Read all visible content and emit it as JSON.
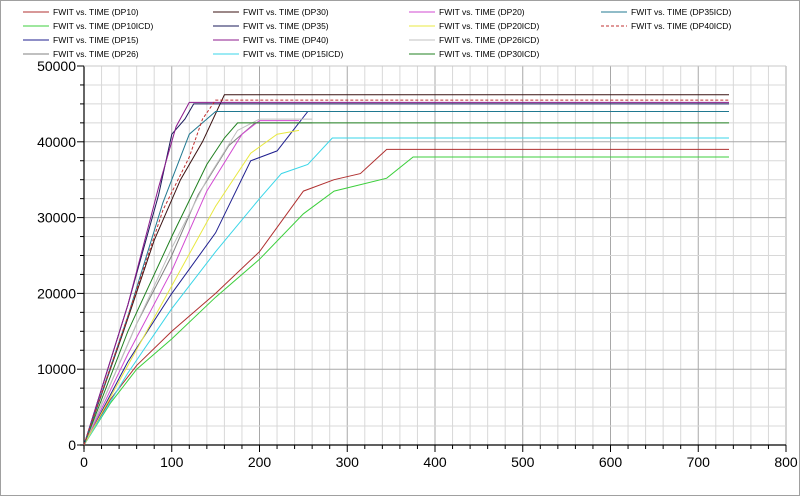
{
  "chart_data": {
    "type": "line",
    "title": "",
    "xlabel": "",
    "ylabel": "",
    "xlim": [
      0,
      800
    ],
    "ylim": [
      0,
      50000
    ],
    "x_ticks": [
      "0",
      "100",
      "200",
      "300",
      "400",
      "500",
      "600",
      "700",
      "800"
    ],
    "y_ticks": [
      "0",
      "10000",
      "20000",
      "30000",
      "40000",
      "50000"
    ],
    "grid": true,
    "legend_position": "top",
    "series": [
      {
        "name": "FWIT  vs.  TIME  (DP10)",
        "color": "#b03030",
        "dash": false,
        "points": [
          [
            0,
            0
          ],
          [
            30,
            6000
          ],
          [
            60,
            10500
          ],
          [
            100,
            15000
          ],
          [
            150,
            20000
          ],
          [
            200,
            25500
          ],
          [
            250,
            33500
          ],
          [
            285,
            35000
          ],
          [
            315,
            35800
          ],
          [
            345,
            39000
          ],
          [
            735,
            39000
          ]
        ]
      },
      {
        "name": "FWIT  vs.  TIME  (DP10ICD)",
        "color": "#3ccf3c",
        "dash": false,
        "points": [
          [
            0,
            0
          ],
          [
            30,
            5500
          ],
          [
            60,
            10000
          ],
          [
            100,
            14000
          ],
          [
            150,
            19500
          ],
          [
            200,
            24500
          ],
          [
            250,
            30500
          ],
          [
            285,
            33500
          ],
          [
            345,
            35200
          ],
          [
            375,
            38000
          ],
          [
            735,
            38000
          ]
        ]
      },
      {
        "name": "FWIT  vs.  TIME  (DP15)",
        "color": "#1f1f8f",
        "dash": false,
        "points": [
          [
            0,
            0
          ],
          [
            50,
            11000
          ],
          [
            100,
            20000
          ],
          [
            150,
            28000
          ],
          [
            190,
            37500
          ],
          [
            220,
            38800
          ],
          [
            255,
            44000
          ]
        ]
      },
      {
        "name": "FWIT  vs.  TIME  (DP26)",
        "color": "#808080",
        "dash": false,
        "points": [
          [
            0,
            0
          ],
          [
            60,
            16000
          ],
          [
            100,
            25000
          ],
          [
            130,
            33000
          ],
          [
            165,
            39500
          ],
          [
            195,
            42500
          ],
          [
            260,
            42500
          ]
        ]
      },
      {
        "name": "FWIT  vs.  TIME  (DP30)",
        "color": "#3a1212",
        "dash": false,
        "points": [
          [
            0,
            0
          ],
          [
            45,
            15000
          ],
          [
            80,
            27000
          ],
          [
            110,
            35000
          ],
          [
            135,
            40000
          ],
          [
            160,
            46200
          ],
          [
            735,
            46200
          ]
        ]
      },
      {
        "name": "FWIT  vs.  TIME  (DP35)",
        "color": "#1a1a5a",
        "dash": false,
        "points": [
          [
            0,
            0
          ],
          [
            50,
            18500
          ],
          [
            85,
            33000
          ],
          [
            100,
            41000
          ],
          [
            115,
            43000
          ],
          [
            125,
            45000
          ],
          [
            735,
            45000
          ]
        ]
      },
      {
        "name": "FWIT  vs.  TIME  (DP40)",
        "color": "#8c1a8c",
        "dash": false,
        "points": [
          [
            0,
            0
          ],
          [
            50,
            18500
          ],
          [
            85,
            34000
          ],
          [
            105,
            42000
          ],
          [
            120,
            45200
          ],
          [
            735,
            45200
          ]
        ]
      },
      {
        "name": "FWIT  vs.  TIME  (DP15ICD)",
        "color": "#3ad6e8",
        "dash": false,
        "points": [
          [
            0,
            0
          ],
          [
            50,
            9500
          ],
          [
            100,
            18000
          ],
          [
            150,
            25500
          ],
          [
            200,
            32500
          ],
          [
            225,
            35800
          ],
          [
            255,
            37000
          ],
          [
            283,
            40500
          ],
          [
            735,
            40500
          ]
        ]
      },
      {
        "name": "FWIT  vs.  TIME  (DP20)",
        "color": "#d24ad2",
        "dash": false,
        "points": [
          [
            0,
            0
          ],
          [
            50,
            12000
          ],
          [
            100,
            23000
          ],
          [
            140,
            33500
          ],
          [
            180,
            41000
          ],
          [
            200,
            42800
          ],
          [
            245,
            42800
          ]
        ]
      },
      {
        "name": "FWIT  vs.  TIME  (DP20ICD)",
        "color": "#e8e840",
        "dash": false,
        "points": [
          [
            0,
            0
          ],
          [
            50,
            10500
          ],
          [
            100,
            21000
          ],
          [
            150,
            31500
          ],
          [
            190,
            38500
          ],
          [
            220,
            41000
          ],
          [
            245,
            41500
          ]
        ]
      },
      {
        "name": "FWIT  vs.  TIME  (DP26ICD)",
        "color": "#c0c0c0",
        "dash": false,
        "points": [
          [
            0,
            0
          ],
          [
            60,
            16000
          ],
          [
            100,
            26000
          ],
          [
            140,
            35000
          ],
          [
            175,
            41500
          ],
          [
            200,
            43000
          ],
          [
            260,
            43000
          ]
        ]
      },
      {
        "name": "FWIT  vs.  TIME  (DP30ICD)",
        "color": "#208020",
        "dash": false,
        "points": [
          [
            0,
            0
          ],
          [
            50,
            15000
          ],
          [
            100,
            27500
          ],
          [
            140,
            37000
          ],
          [
            160,
            40500
          ],
          [
            175,
            42500
          ],
          [
            735,
            42500
          ]
        ]
      },
      {
        "name": "FWIT  vs.  TIME  (DP35ICD)",
        "color": "#207890",
        "dash": false,
        "points": [
          [
            0,
            0
          ],
          [
            50,
            17000
          ],
          [
            90,
            32000
          ],
          [
            120,
            41000
          ],
          [
            150,
            44000
          ],
          [
            735,
            44000
          ]
        ]
      },
      {
        "name": "FWIT  vs.  TIME  (DP40ICD)",
        "color": "#c03030",
        "dash": true,
        "points": [
          [
            0,
            0
          ],
          [
            50,
            17000
          ],
          [
            90,
            31000
          ],
          [
            120,
            38000
          ],
          [
            135,
            43000
          ],
          [
            150,
            45500
          ],
          [
            735,
            45500
          ]
        ]
      }
    ]
  }
}
